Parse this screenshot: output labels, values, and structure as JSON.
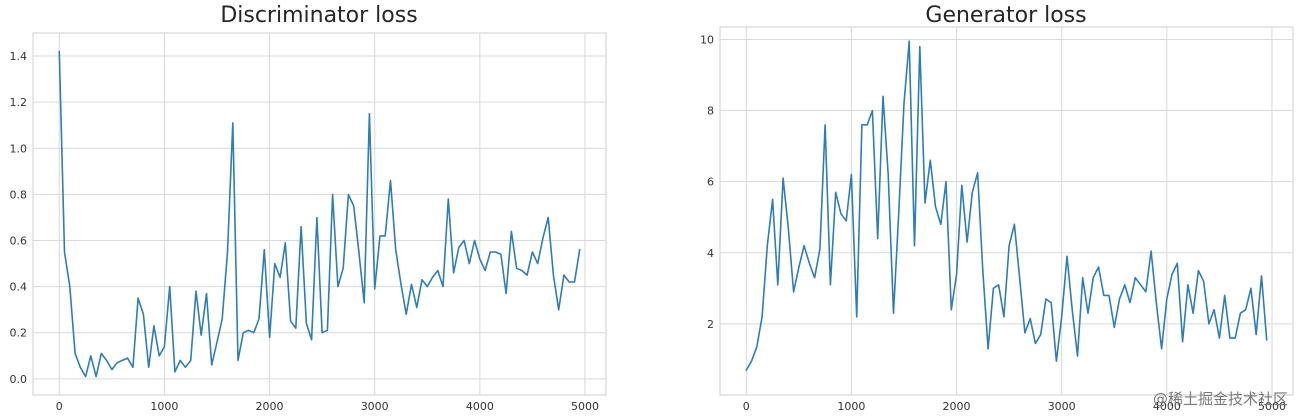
{
  "watermark": "@稀土掘金技术社区",
  "style": {
    "line_color": "#2e7db5"
  },
  "chart_data": [
    {
      "type": "line",
      "title": "Discriminator loss",
      "xlabel": "",
      "ylabel": "",
      "xlim": [
        -250,
        5200
      ],
      "ylim": [
        -0.07,
        1.5
      ],
      "xticks": [
        0,
        1000,
        2000,
        3000,
        4000,
        5000
      ],
      "yticks": [
        0.0,
        0.2,
        0.4,
        0.6,
        0.8,
        1.0,
        1.2,
        1.4
      ],
      "ytick_labels": [
        "0.0",
        "0.2",
        "0.4",
        "0.6",
        "0.8",
        "1.0",
        "1.2",
        "1.4"
      ],
      "grid": true,
      "series": [
        {
          "x": [
            0,
            50,
            100,
            150,
            200,
            250,
            300,
            350,
            400,
            450,
            500,
            550,
            600,
            650,
            700,
            750,
            800,
            850,
            900,
            950,
            1000,
            1050,
            1100,
            1150,
            1200,
            1250,
            1300,
            1350,
            1400,
            1450,
            1500,
            1550,
            1600,
            1650,
            1700,
            1750,
            1800,
            1850,
            1900,
            1950,
            2000,
            2050,
            2100,
            2150,
            2200,
            2250,
            2300,
            2350,
            2400,
            2450,
            2500,
            2550,
            2600,
            2650,
            2700,
            2750,
            2800,
            2850,
            2900,
            2950,
            3000,
            3050,
            3100,
            3150,
            3200,
            3250,
            3300,
            3350,
            3400,
            3450,
            3500,
            3550,
            3600,
            3650,
            3700,
            3750,
            3800,
            3850,
            3900,
            3950,
            4000,
            4050,
            4100,
            4150,
            4200,
            4250,
            4300,
            4350,
            4400,
            4450,
            4500,
            4550,
            4600,
            4650,
            4700,
            4750,
            4800,
            4850,
            4900,
            4950
          ],
          "y": [
            1.42,
            0.55,
            0.4,
            0.11,
            0.05,
            0.01,
            0.1,
            0.01,
            0.11,
            0.08,
            0.04,
            0.07,
            0.08,
            0.09,
            0.05,
            0.35,
            0.28,
            0.05,
            0.23,
            0.1,
            0.14,
            0.4,
            0.03,
            0.08,
            0.05,
            0.08,
            0.38,
            0.19,
            0.37,
            0.06,
            0.16,
            0.26,
            0.55,
            1.11,
            0.08,
            0.2,
            0.21,
            0.2,
            0.26,
            0.56,
            0.18,
            0.5,
            0.44,
            0.59,
            0.25,
            0.22,
            0.66,
            0.24,
            0.17,
            0.7,
            0.2,
            0.21,
            0.8,
            0.4,
            0.48,
            0.8,
            0.75,
            0.55,
            0.33,
            1.15,
            0.39,
            0.62,
            0.62,
            0.86,
            0.56,
            0.41,
            0.28,
            0.41,
            0.31,
            0.43,
            0.4,
            0.44,
            0.47,
            0.4,
            0.78,
            0.46,
            0.57,
            0.6,
            0.5,
            0.6,
            0.52,
            0.47,
            0.55,
            0.55,
            0.54,
            0.37,
            0.64,
            0.48,
            0.47,
            0.45,
            0.55,
            0.5,
            0.61,
            0.7,
            0.45,
            0.3,
            0.45,
            0.42,
            0.42,
            0.56
          ]
        }
      ]
    },
    {
      "type": "line",
      "title": "Generator loss",
      "xlabel": "",
      "ylabel": "",
      "xlim": [
        -250,
        5200
      ],
      "ylim": [
        0.0,
        10.35
      ],
      "xticks": [
        0,
        1000,
        2000,
        3000,
        4000,
        5000
      ],
      "yticks": [
        2,
        4,
        6,
        8,
        10
      ],
      "ytick_labels": [
        "2",
        "4",
        "6",
        "8",
        "10"
      ],
      "grid": true,
      "series": [
        {
          "x": [
            0,
            50,
            100,
            150,
            200,
            250,
            300,
            350,
            400,
            450,
            500,
            550,
            600,
            650,
            700,
            750,
            800,
            850,
            900,
            950,
            1000,
            1050,
            1100,
            1150,
            1200,
            1250,
            1300,
            1350,
            1400,
            1450,
            1500,
            1550,
            1600,
            1650,
            1700,
            1750,
            1800,
            1850,
            1900,
            1950,
            2000,
            2050,
            2100,
            2150,
            2200,
            2250,
            2300,
            2350,
            2400,
            2450,
            2500,
            2550,
            2600,
            2650,
            2700,
            2750,
            2800,
            2850,
            2900,
            2950,
            3000,
            3050,
            3100,
            3150,
            3200,
            3250,
            3300,
            3350,
            3400,
            3450,
            3500,
            3550,
            3600,
            3650,
            3700,
            3750,
            3800,
            3850,
            3900,
            3950,
            4000,
            4050,
            4100,
            4150,
            4200,
            4250,
            4300,
            4350,
            4400,
            4450,
            4500,
            4550,
            4600,
            4650,
            4700,
            4750,
            4800,
            4850,
            4900,
            4950
          ],
          "y": [
            0.7,
            0.95,
            1.35,
            2.2,
            4.2,
            5.5,
            3.1,
            6.1,
            4.7,
            2.9,
            3.6,
            4.2,
            3.7,
            3.3,
            4.1,
            7.6,
            3.1,
            5.7,
            5.1,
            4.9,
            6.2,
            2.2,
            7.6,
            7.6,
            8.0,
            4.4,
            8.4,
            6.2,
            2.3,
            5.1,
            8.2,
            9.95,
            4.2,
            9.8,
            5.4,
            6.6,
            5.3,
            4.8,
            6.0,
            2.4,
            3.4,
            5.9,
            4.3,
            5.7,
            6.25,
            3.5,
            1.3,
            3.0,
            3.1,
            2.2,
            4.2,
            4.8,
            3.3,
            1.75,
            2.15,
            1.45,
            1.7,
            2.7,
            2.6,
            0.95,
            2.2,
            3.9,
            2.4,
            1.1,
            3.3,
            2.3,
            3.3,
            3.6,
            2.8,
            2.8,
            1.9,
            2.7,
            3.1,
            2.6,
            3.3,
            3.1,
            2.9,
            4.05,
            2.6,
            1.3,
            2.7,
            3.4,
            3.7,
            1.5,
            3.1,
            2.3,
            3.5,
            3.2,
            2.0,
            2.4,
            1.6,
            2.8,
            1.6,
            1.6,
            2.3,
            2.4,
            3.0,
            1.7,
            3.35,
            1.55
          ]
        }
      ]
    }
  ]
}
